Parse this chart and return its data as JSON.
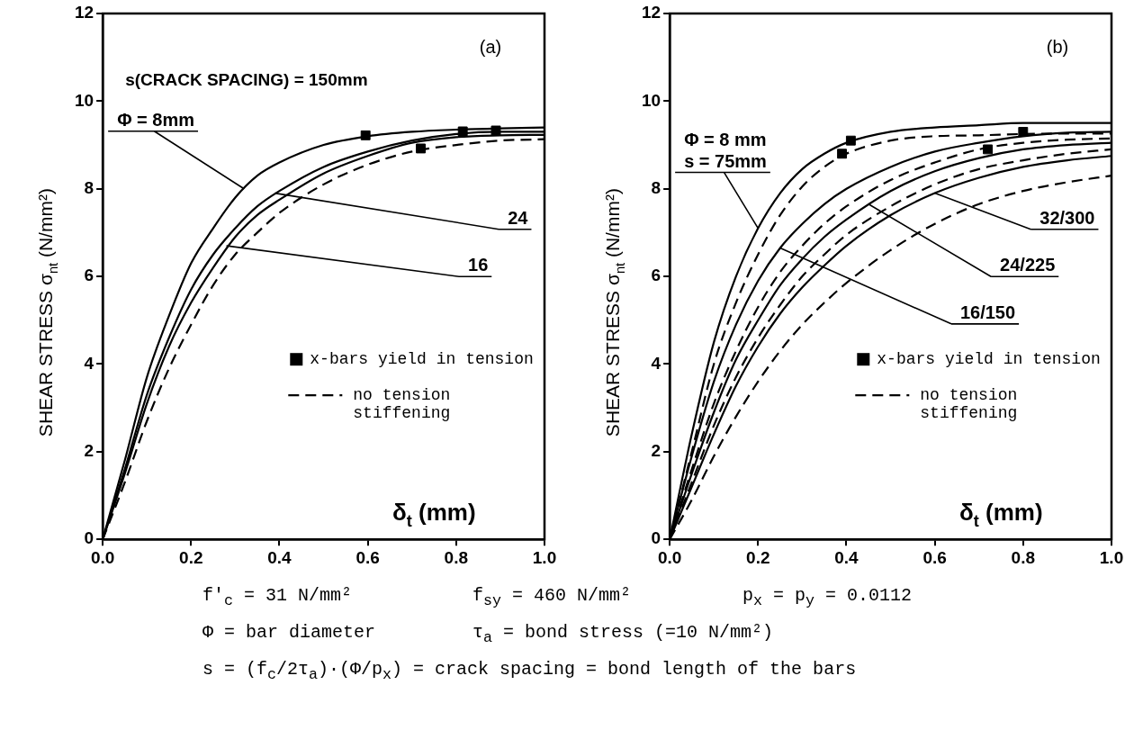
{
  "chart_data": [
    {
      "type": "line",
      "title": "(a)",
      "xlabel": "δ$_{t}$ (mm)",
      "ylabel": "SHEAR STRESS σ$_{nt}$ (N/mm²)",
      "xlim": [
        0,
        1
      ],
      "ylim": [
        0,
        12
      ],
      "xticks": [
        {
          "value": 0,
          "label": "0.0"
        },
        {
          "value": 0.2,
          "label": "0.2"
        },
        {
          "value": 0.4,
          "label": "0.4"
        },
        {
          "value": 0.6,
          "label": "0.6"
        },
        {
          "value": 0.8,
          "label": "0.8"
        },
        {
          "value": 1,
          "label": "1.0"
        }
      ],
      "yticks": [
        0,
        2,
        4,
        6,
        8,
        10,
        12
      ],
      "grid": false,
      "legend": "bottom right",
      "marker": "none",
      "annotations": [
        "s(CRACK SPACING) = 150mm",
        {
          "text": "Φ = 8mm",
          "x": 0.32,
          "y": 8.0
        },
        {
          "text": "24",
          "x": 0.39,
          "y": 7.9
        },
        {
          "text": "16",
          "x": 0.28,
          "y": 6.7
        }
      ],
      "series": [
        {
          "color": "#000000",
          "line_style": "solid",
          "x": [
            0,
            0.05,
            0.1,
            0.15,
            0.2,
            0.25,
            0.3,
            0.35,
            0.4,
            0.5,
            0.6,
            0.7,
            0.8,
            0.9,
            1.0
          ],
          "values": [
            0,
            1.8,
            3.7,
            5.1,
            6.3,
            7.1,
            7.8,
            8.3,
            8.6,
            9.0,
            9.2,
            9.3,
            9.35,
            9.38,
            9.4
          ]
        },
        {
          "color": "#000000",
          "line_style": "solid",
          "x": [
            0,
            0.05,
            0.1,
            0.15,
            0.2,
            0.25,
            0.3,
            0.35,
            0.4,
            0.5,
            0.6,
            0.7,
            0.8,
            0.9,
            1.0
          ],
          "values": [
            0,
            1.6,
            3.3,
            4.6,
            5.7,
            6.5,
            7.1,
            7.6,
            7.95,
            8.5,
            8.85,
            9.1,
            9.25,
            9.3,
            9.3
          ]
        },
        {
          "color": "#000000",
          "line_style": "solid",
          "x": [
            0,
            0.05,
            0.1,
            0.15,
            0.2,
            0.25,
            0.3,
            0.35,
            0.4,
            0.5,
            0.6,
            0.7,
            0.8,
            0.9,
            1.0
          ],
          "values": [
            0,
            1.5,
            3.1,
            4.4,
            5.4,
            6.2,
            6.9,
            7.4,
            7.75,
            8.35,
            8.75,
            9.05,
            9.18,
            9.22,
            9.23
          ]
        },
        {
          "name": "no tension stiffening",
          "color": "#000000",
          "line_style": "dashed",
          "x": [
            0,
            0.05,
            0.1,
            0.15,
            0.2,
            0.25,
            0.3,
            0.35,
            0.4,
            0.5,
            0.6,
            0.7,
            0.8,
            0.9,
            1.0
          ],
          "values": [
            0,
            1.3,
            2.7,
            3.9,
            4.9,
            5.8,
            6.5,
            7.0,
            7.45,
            8.1,
            8.55,
            8.85,
            9.0,
            9.1,
            9.13
          ]
        },
        {
          "name": "x-bars yield in tension",
          "type": "scatter",
          "marker": "square",
          "color": "#000000",
          "x": [
            0.595,
            0.72,
            0.815,
            0.89
          ],
          "values": [
            9.22,
            8.92,
            9.31,
            9.33
          ]
        }
      ]
    },
    {
      "type": "line",
      "title": "(b)",
      "xlabel": "δ$_{t}$ (mm)",
      "ylabel": "SHEAR STRESS σ$_{nt}$ (N/mm²)",
      "xlim": [
        0,
        1
      ],
      "ylim": [
        0,
        12
      ],
      "xticks": [
        {
          "value": 0,
          "label": "0.0"
        },
        {
          "value": 0.2,
          "label": "0.2"
        },
        {
          "value": 0.4,
          "label": "0.4"
        },
        {
          "value": 0.6,
          "label": "0.6"
        },
        {
          "value": 0.8,
          "label": "0.8"
        },
        {
          "value": 1,
          "label": "1.0"
        }
      ],
      "yticks": [
        0,
        2,
        4,
        6,
        8,
        10,
        12
      ],
      "grid": false,
      "legend": "bottom right",
      "marker": "none",
      "annotations": [
        {
          "text": "Φ = 8 mm\ns = 75mm",
          "x": 0.2,
          "y": 7.1
        },
        {
          "text": "32/300",
          "x": 0.6,
          "y": 7.9
        },
        {
          "text": "24/225",
          "x": 0.45,
          "y": 7.65
        },
        {
          "text": "16/150",
          "x": 0.25,
          "y": 6.65
        }
      ],
      "series": [
        {
          "color": "#000000",
          "line_style": "solid",
          "x": [
            0,
            0.05,
            0.1,
            0.15,
            0.2,
            0.25,
            0.3,
            0.35,
            0.4,
            0.5,
            0.6,
            0.7,
            0.8,
            0.9,
            1.0
          ],
          "values": [
            0,
            2.4,
            4.5,
            6.0,
            7.1,
            7.9,
            8.45,
            8.8,
            9.05,
            9.3,
            9.4,
            9.45,
            9.5,
            9.5,
            9.5
          ]
        },
        {
          "name": "no tension stiffening",
          "color": "#000000",
          "line_style": "dashed",
          "x": [
            0,
            0.05,
            0.1,
            0.15,
            0.2,
            0.25,
            0.3,
            0.35,
            0.4,
            0.5,
            0.6,
            0.7,
            0.8,
            0.9,
            1.0
          ],
          "values": [
            0,
            2.0,
            4.0,
            5.4,
            6.5,
            7.4,
            8.05,
            8.5,
            8.8,
            9.1,
            9.2,
            9.22,
            9.25,
            9.26,
            9.26
          ]
        },
        {
          "color": "#000000",
          "line_style": "solid",
          "x": [
            0,
            0.05,
            0.1,
            0.15,
            0.2,
            0.25,
            0.3,
            0.35,
            0.4,
            0.5,
            0.6,
            0.7,
            0.8,
            0.9,
            1.0
          ],
          "values": [
            0,
            1.9,
            3.6,
            4.9,
            5.9,
            6.65,
            7.2,
            7.65,
            8.0,
            8.5,
            8.85,
            9.05,
            9.2,
            9.28,
            9.3
          ]
        },
        {
          "color": "#000000",
          "line_style": "dashed",
          "x": [
            0,
            0.05,
            0.1,
            0.15,
            0.2,
            0.25,
            0.3,
            0.35,
            0.4,
            0.5,
            0.6,
            0.7,
            0.8,
            0.9,
            1.0
          ],
          "values": [
            0,
            1.6,
            3.1,
            4.3,
            5.3,
            6.1,
            6.7,
            7.2,
            7.6,
            8.2,
            8.6,
            8.9,
            9.05,
            9.12,
            9.15
          ]
        },
        {
          "color": "#000000",
          "line_style": "solid",
          "x": [
            0,
            0.05,
            0.1,
            0.15,
            0.2,
            0.25,
            0.3,
            0.35,
            0.4,
            0.5,
            0.6,
            0.7,
            0.8,
            0.9,
            1.0
          ],
          "values": [
            0,
            1.5,
            2.9,
            4.1,
            5.0,
            5.8,
            6.4,
            6.9,
            7.3,
            7.95,
            8.4,
            8.7,
            8.9,
            9.0,
            9.05
          ]
        },
        {
          "color": "#000000",
          "line_style": "dashed",
          "x": [
            0,
            0.05,
            0.1,
            0.15,
            0.2,
            0.25,
            0.3,
            0.35,
            0.4,
            0.5,
            0.6,
            0.7,
            0.8,
            0.9,
            1.0
          ],
          "values": [
            0,
            1.3,
            2.6,
            3.7,
            4.6,
            5.35,
            6.0,
            6.5,
            6.95,
            7.6,
            8.1,
            8.45,
            8.65,
            8.8,
            8.9
          ]
        },
        {
          "color": "#000000",
          "line_style": "solid",
          "x": [
            0,
            0.05,
            0.1,
            0.15,
            0.2,
            0.25,
            0.3,
            0.35,
            0.4,
            0.5,
            0.6,
            0.7,
            0.8,
            0.9,
            1.0
          ],
          "values": [
            0,
            1.2,
            2.4,
            3.5,
            4.4,
            5.15,
            5.75,
            6.25,
            6.7,
            7.4,
            7.9,
            8.25,
            8.5,
            8.65,
            8.75
          ]
        },
        {
          "color": "#000000",
          "line_style": "dashed",
          "x": [
            0,
            0.05,
            0.1,
            0.15,
            0.2,
            0.25,
            0.3,
            0.35,
            0.4,
            0.5,
            0.6,
            0.7,
            0.8,
            0.9,
            1.0
          ],
          "values": [
            0,
            0.9,
            1.9,
            2.8,
            3.6,
            4.3,
            4.9,
            5.4,
            5.85,
            6.6,
            7.2,
            7.65,
            7.95,
            8.15,
            8.3
          ]
        },
        {
          "name": "x-bars yield in tension",
          "type": "scatter",
          "marker": "square",
          "color": "#000000",
          "x": [
            0.39,
            0.41,
            0.72,
            0.8
          ],
          "values": [
            8.8,
            9.1,
            8.9,
            9.3
          ]
        }
      ]
    },
    {
      "type": "other",
      "annotations": [
        "f'$_{c}$ = 31 N/mm²",
        "f$_{sy}$ = 460 N/mm²",
        "p$_{x}$ = p$_{y}$ = 0.0112",
        "Φ = bar diameter",
        "τ$_{a}$ = bond stress (=10 N/mm²)",
        "s = (f$_{c}$/2τ$_{a}$)·(Φ/p$_{x}$) = crack spacing = bond length of the bars"
      ]
    }
  ]
}
